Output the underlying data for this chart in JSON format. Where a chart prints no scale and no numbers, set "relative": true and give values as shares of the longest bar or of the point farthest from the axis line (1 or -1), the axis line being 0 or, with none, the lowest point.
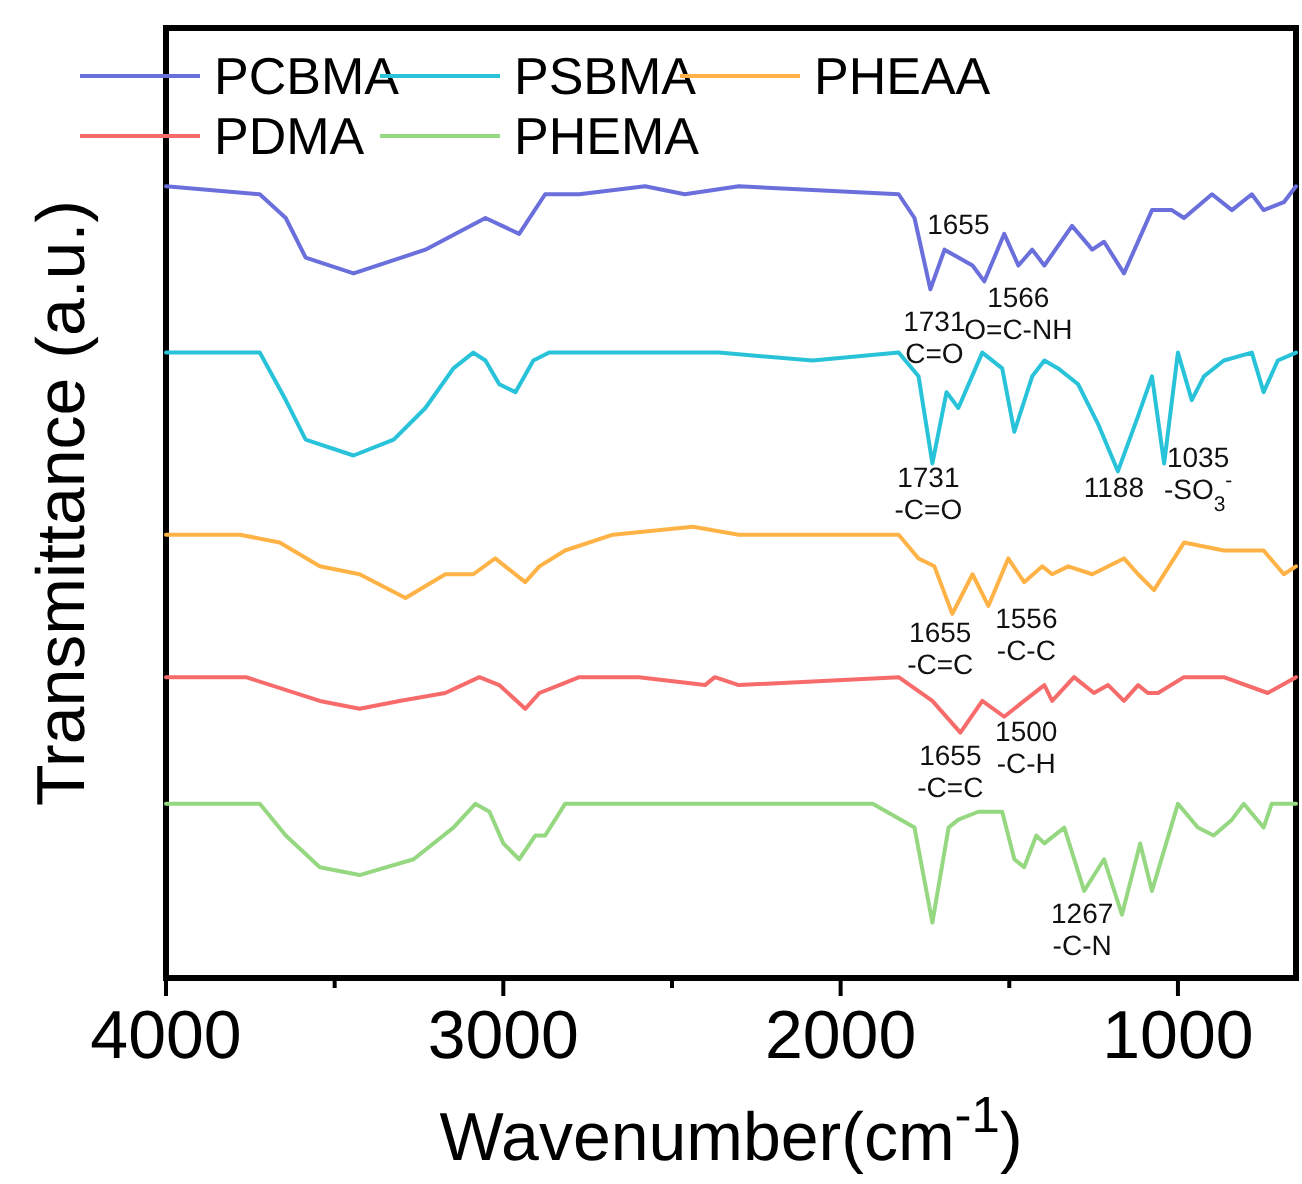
{
  "chart_data": {
    "type": "line",
    "relative": true,
    "xlabel": "Wavenumber(cm$^{-1}$)",
    "ylabel": "Transmittance (a.u.)",
    "xlim": [
      4000,
      650
    ],
    "xticks": [
      4000,
      {
        "value": 3500,
        "label": null
      },
      3000,
      {
        "value": 2500,
        "label": null
      },
      2000,
      {
        "value": 1500,
        "label": null
      },
      1000
    ],
    "legend": "top",
    "tick_labels": "x",
    "grid": false,
    "marker": "none",
    "line_style": "solid",
    "series": [
      {
        "name": "PCBMA",
        "color": "#6a6fdc",
        "x": [
          4000,
          3722,
          3645,
          3586,
          3444,
          3231,
          3053,
          2953,
          2876,
          2775,
          2580,
          2462,
          2302,
          1828,
          1781,
          1734,
          1692,
          1651,
          1609,
          1574,
          1515,
          1473,
          1432,
          1396,
          1314,
          1254,
          1219,
          1160,
          1077,
          1018,
          982,
          899,
          840,
          781,
          746,
          686,
          650
        ],
        "values": [
          1.0,
          0.99,
          0.96,
          0.91,
          0.89,
          0.92,
          0.96,
          0.94,
          0.99,
          0.99,
          1.0,
          0.99,
          1.0,
          0.99,
          0.96,
          0.87,
          0.92,
          0.91,
          0.9,
          0.88,
          0.94,
          0.9,
          0.92,
          0.9,
          0.95,
          0.92,
          0.93,
          0.89,
          0.97,
          0.97,
          0.96,
          0.99,
          0.97,
          0.99,
          0.97,
          0.98,
          1.0
        ]
      },
      {
        "name": "PSBMA",
        "color": "#29c3d9",
        "x": [
          4000,
          3722,
          3645,
          3586,
          3444,
          3325,
          3231,
          3148,
          3089,
          3053,
          3012,
          2964,
          2911,
          2864,
          2361,
          2083,
          1828,
          1769,
          1728,
          1686,
          1651,
          1580,
          1521,
          1485,
          1432,
          1396,
          1355,
          1296,
          1237,
          1178,
          1118,
          1077,
          1041,
          1000,
          959,
          923,
          864,
          781,
          746,
          704,
          650
        ],
        "values": [
          0.79,
          0.79,
          0.73,
          0.68,
          0.66,
          0.68,
          0.72,
          0.77,
          0.79,
          0.78,
          0.75,
          0.74,
          0.78,
          0.79,
          0.79,
          0.78,
          0.79,
          0.76,
          0.65,
          0.74,
          0.72,
          0.79,
          0.77,
          0.69,
          0.76,
          0.78,
          0.77,
          0.75,
          0.7,
          0.64,
          0.71,
          0.76,
          0.65,
          0.79,
          0.73,
          0.76,
          0.78,
          0.79,
          0.74,
          0.78,
          0.79
        ]
      },
      {
        "name": "PHEAA",
        "color": "#ffb347",
        "x": [
          4000,
          3781,
          3663,
          3544,
          3426,
          3290,
          3172,
          3089,
          3024,
          2935,
          2893,
          2817,
          2675,
          2438,
          2302,
          1828,
          1769,
          1722,
          1669,
          1609,
          1562,
          1503,
          1456,
          1402,
          1373,
          1325,
          1254,
          1160,
          1118,
          1071,
          982,
          864,
          746,
          686,
          650
        ],
        "values": [
          0.56,
          0.56,
          0.55,
          0.52,
          0.51,
          0.48,
          0.51,
          0.51,
          0.53,
          0.5,
          0.52,
          0.54,
          0.56,
          0.57,
          0.56,
          0.56,
          0.53,
          0.52,
          0.46,
          0.51,
          0.47,
          0.53,
          0.5,
          0.52,
          0.51,
          0.52,
          0.51,
          0.53,
          0.51,
          0.49,
          0.55,
          0.54,
          0.54,
          0.51,
          0.52
        ]
      },
      {
        "name": "PDMA",
        "color": "#f76b6b",
        "x": [
          4000,
          3763,
          3544,
          3426,
          3308,
          3172,
          3071,
          3012,
          2935,
          2893,
          2834,
          2775,
          2598,
          2402,
          2373,
          2302,
          1828,
          1728,
          1645,
          1580,
          1515,
          1456,
          1396,
          1373,
          1308,
          1249,
          1207,
          1160,
          1118,
          1089,
          1059,
          982,
          864,
          734,
          650
        ],
        "values": [
          0.38,
          0.38,
          0.35,
          0.34,
          0.35,
          0.36,
          0.38,
          0.37,
          0.34,
          0.36,
          0.37,
          0.38,
          0.38,
          0.37,
          0.38,
          0.37,
          0.38,
          0.35,
          0.31,
          0.35,
          0.33,
          0.35,
          0.37,
          0.35,
          0.38,
          0.36,
          0.37,
          0.35,
          0.37,
          0.36,
          0.36,
          0.38,
          0.38,
          0.36,
          0.38
        ]
      },
      {
        "name": "PHEMA",
        "color": "#96d882",
        "x": [
          4000,
          3722,
          3645,
          3544,
          3426,
          3266,
          3148,
          3083,
          3041,
          3000,
          2953,
          2905,
          2876,
          2817,
          2302,
          1905,
          1781,
          1728,
          1680,
          1651,
          1592,
          1521,
          1485,
          1456,
          1420,
          1396,
          1337,
          1278,
          1219,
          1166,
          1112,
          1077,
          1000,
          941,
          894,
          840,
          805,
          746,
          722,
          650
        ],
        "values": [
          0.22,
          0.22,
          0.18,
          0.14,
          0.13,
          0.15,
          0.19,
          0.22,
          0.21,
          0.17,
          0.15,
          0.18,
          0.18,
          0.22,
          0.22,
          0.22,
          0.19,
          0.07,
          0.19,
          0.2,
          0.21,
          0.21,
          0.15,
          0.14,
          0.18,
          0.17,
          0.19,
          0.11,
          0.15,
          0.08,
          0.17,
          0.11,
          0.22,
          0.19,
          0.18,
          0.2,
          0.22,
          0.19,
          0.22,
          0.22
        ]
      }
    ],
    "annotations": [
      {
        "text": "1655",
        "x": 1651,
        "y": 0.91
      },
      {
        "text": "1566\nO=C-NH",
        "x": 1574,
        "y": 0.88
      },
      {
        "text": "1731\nC=O",
        "x": 1734,
        "y": 0.87
      },
      {
        "text": "1731\n-C=O",
        "x": 1728,
        "y": 0.65
      },
      {
        "text": "1188",
        "x": 1178,
        "y": 0.64
      },
      {
        "text": "1035\n-SO$_{3}$$^{-}$",
        "x": 1041,
        "y": 0.65
      },
      {
        "text": "1655\n-C=C",
        "x": 1669,
        "y": 0.46
      },
      {
        "text": "1556\n-C-C",
        "x": 1562,
        "y": 0.47
      },
      {
        "text": "1655\n-C=C",
        "x": 1645,
        "y": 0.31
      },
      {
        "text": "1500\n-C-H",
        "x": 1515,
        "y": 0.33
      },
      {
        "text": "1267\n-C-N",
        "x": 1278,
        "y": 0.11
      }
    ]
  }
}
